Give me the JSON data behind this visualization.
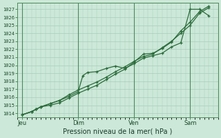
{
  "bg_color": "#cce8d8",
  "plot_bg_color": "#cce8d8",
  "grid_color": "#aaccbb",
  "line_color": "#2a6b3a",
  "title": "Pression niveau de la mer( hPa )",
  "ylim": [
    1013.5,
    1027.8
  ],
  "yticks": [
    1014,
    1015,
    1016,
    1017,
    1018,
    1019,
    1020,
    1021,
    1022,
    1023,
    1024,
    1025,
    1026,
    1027
  ],
  "xtick_labels": [
    "Jeu",
    "Dim",
    "Ven",
    "Sam"
  ],
  "xtick_positions": [
    0,
    12,
    24,
    36
  ],
  "xlim": [
    -1,
    42
  ],
  "series1_x": [
    0,
    2,
    3,
    4,
    6,
    8,
    10,
    12,
    14,
    16,
    18,
    20,
    22,
    24,
    26,
    28,
    30,
    32,
    34,
    36,
    38,
    40
  ],
  "series1_y": [
    1013.8,
    1014.2,
    1014.5,
    1014.8,
    1015.2,
    1015.6,
    1016.3,
    1016.9,
    1017.4,
    1017.9,
    1018.5,
    1019.2,
    1019.8,
    1020.5,
    1021.1,
    1021.4,
    1022.2,
    1023.0,
    1024.0,
    1025.0,
    1026.5,
    1027.2
  ],
  "series2_x": [
    0,
    2,
    3,
    4,
    6,
    8,
    10,
    12,
    13,
    14,
    16,
    18,
    20,
    22,
    24,
    26,
    28,
    30,
    32,
    34,
    36,
    38,
    40
  ],
  "series2_y": [
    1013.8,
    1014.2,
    1014.5,
    1014.8,
    1015.2,
    1015.6,
    1016.1,
    1016.7,
    1018.7,
    1019.1,
    1019.2,
    1019.6,
    1019.9,
    1019.6,
    1020.2,
    1020.9,
    1021.2,
    1021.5,
    1022.3,
    1022.8,
    1027.0,
    1027.0,
    1026.2
  ],
  "series3_x": [
    0,
    2,
    3,
    4,
    6,
    8,
    10,
    12,
    14,
    16,
    18,
    20,
    22,
    24,
    26,
    28,
    30,
    32,
    34,
    36,
    38,
    40
  ],
  "series3_y": [
    1013.8,
    1014.2,
    1014.5,
    1014.8,
    1015.0,
    1015.3,
    1015.9,
    1016.5,
    1017.0,
    1017.5,
    1018.2,
    1018.9,
    1019.5,
    1020.4,
    1021.4,
    1021.5,
    1022.1,
    1022.9,
    1024.3,
    1025.4,
    1026.7,
    1027.4
  ]
}
